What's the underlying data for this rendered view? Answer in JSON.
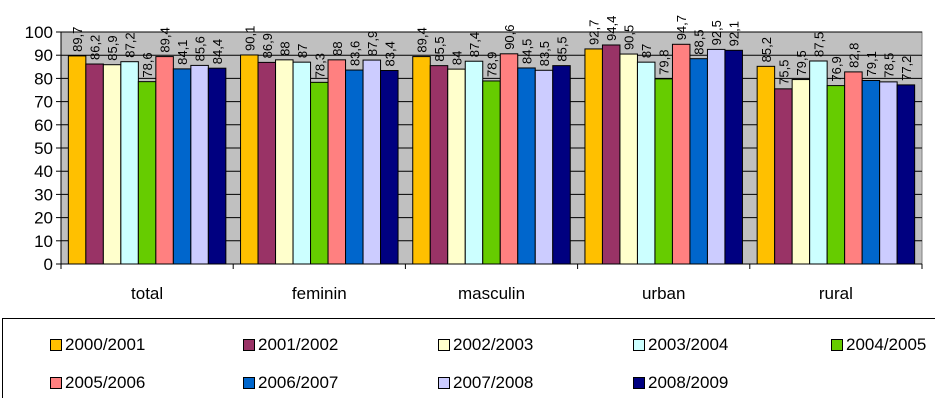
{
  "chart_data": {
    "type": "bar",
    "title": "",
    "xlabel": "",
    "ylabel": "",
    "ylim": [
      0,
      100
    ],
    "yticks": [
      0,
      10,
      20,
      30,
      40,
      50,
      60,
      70,
      80,
      90,
      100
    ],
    "grid": true,
    "legend_position": "bottom",
    "categories": [
      "total",
      "feminin",
      "masculin",
      "urban",
      "rural"
    ],
    "series": [
      {
        "name": "2000/2001",
        "color": "#ffc000",
        "values": [
          89.7,
          90.1,
          89.4,
          92.7,
          85.2
        ],
        "labels": [
          "89,7",
          "90,1",
          "89,4",
          "92,7",
          "85,2"
        ]
      },
      {
        "name": "2001/2002",
        "color": "#993366",
        "values": [
          86.2,
          86.9,
          85.5,
          94.4,
          75.5
        ],
        "labels": [
          "86,2",
          "86,9",
          "85,5",
          "94,4",
          "75,5"
        ]
      },
      {
        "name": "2002/2003",
        "color": "#ffffcc",
        "values": [
          85.9,
          88.0,
          84.0,
          90.5,
          79.5
        ],
        "labels": [
          "85,9",
          "88",
          "84",
          "90,5",
          "79,5"
        ]
      },
      {
        "name": "2003/2004",
        "color": "#ccffff",
        "values": [
          87.2,
          87.0,
          87.4,
          87.0,
          87.5
        ],
        "labels": [
          "87,2",
          "87",
          "87,4",
          "87",
          "87,5"
        ]
      },
      {
        "name": "2004/2005",
        "color": "#66cc00",
        "values": [
          78.6,
          78.3,
          78.9,
          79.8,
          76.9
        ],
        "labels": [
          "78,6",
          "78,3",
          "78,9",
          "79,8",
          "76,9"
        ]
      },
      {
        "name": "2005/2006",
        "color": "#ff8080",
        "values": [
          89.4,
          88.0,
          90.6,
          94.7,
          82.8
        ],
        "labels": [
          "89,4",
          "88",
          "90,6",
          "94,7",
          "82,8"
        ]
      },
      {
        "name": "2006/2007",
        "color": "#0066cc",
        "values": [
          84.1,
          83.6,
          84.5,
          88.5,
          79.1
        ],
        "labels": [
          "84,1",
          "83,6",
          "84,5",
          "88,5",
          "79,1"
        ]
      },
      {
        "name": "2007/2008",
        "color": "#ccccff",
        "values": [
          85.6,
          87.9,
          83.5,
          92.5,
          78.5
        ],
        "labels": [
          "85,6",
          "87,9",
          "83,5",
          "92,5",
          "78,5"
        ]
      },
      {
        "name": "2008/2009",
        "color": "#000080",
        "values": [
          84.4,
          83.4,
          85.5,
          92.1,
          77.2
        ],
        "labels": [
          "84,4",
          "83,4",
          "85,5",
          "92,1",
          "77,2"
        ]
      }
    ]
  }
}
